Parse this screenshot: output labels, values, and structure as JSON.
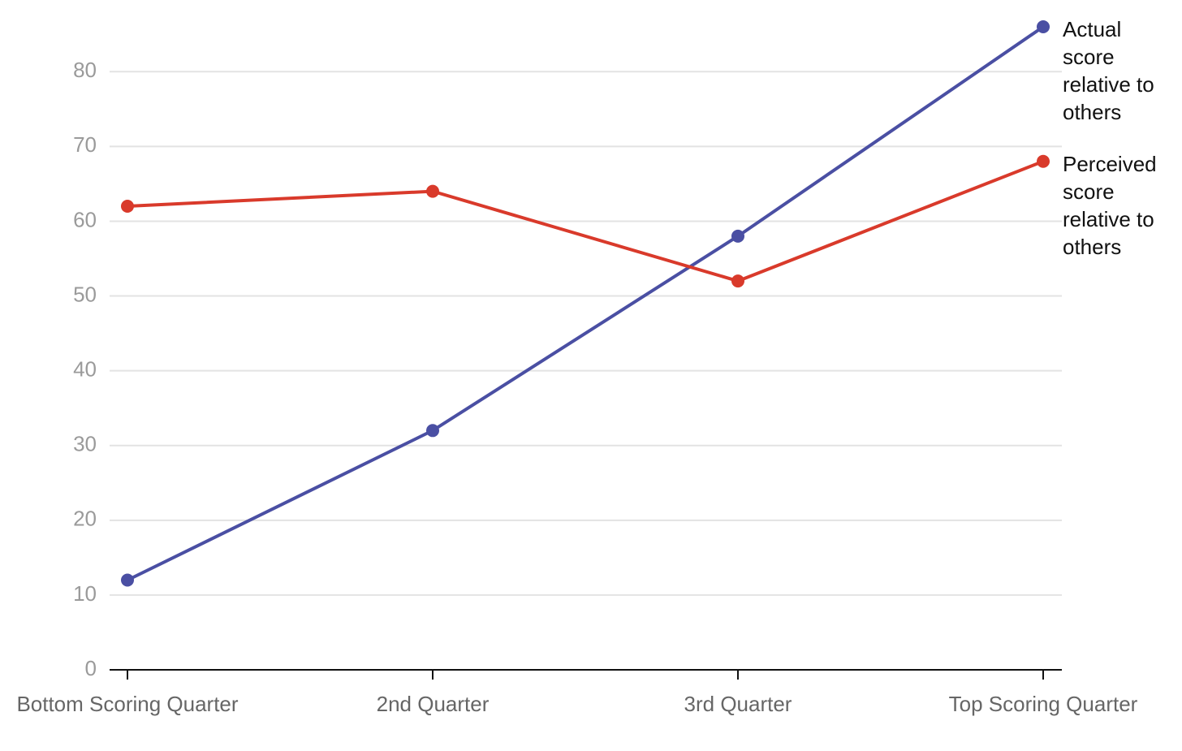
{
  "chart_data": {
    "type": "line",
    "categories": [
      "Bottom Scoring Quarter",
      "2nd Quarter",
      "3rd Quarter",
      "Top Scoring Quarter"
    ],
    "series": [
      {
        "name": "Actual score relative to others",
        "color": "#4a4fa3",
        "values": [
          12,
          32,
          58,
          86
        ]
      },
      {
        "name": "Perceived score relative to others",
        "color": "#d93a2b",
        "values": [
          62,
          64,
          52,
          68
        ]
      }
    ],
    "ylim": [
      0,
      86
    ],
    "yticks": [
      0,
      10,
      20,
      30,
      40,
      50,
      60,
      70,
      80
    ],
    "grid": true
  }
}
